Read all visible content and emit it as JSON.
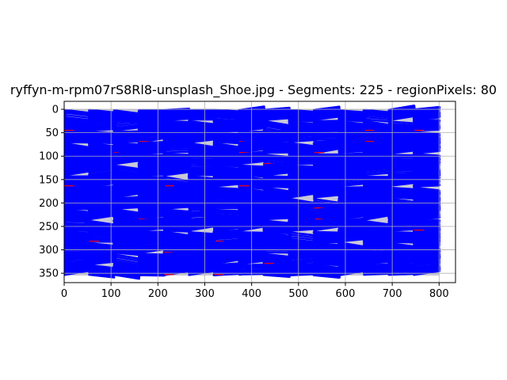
{
  "chart_data": {
    "type": "scatter",
    "title": "ryffyn-m-rpm07rS8Rl8-unsplash_Shoe.jpg - Segments: 225 - regionPixels: 80",
    "xlabel": "",
    "ylabel": "",
    "xlim": [
      0,
      835
    ],
    "ylim": [
      370,
      -17
    ],
    "y_inverted": true,
    "grid": true,
    "x_ticks": [
      0,
      100,
      200,
      300,
      400,
      500,
      600,
      700,
      800
    ],
    "y_ticks": [
      0,
      50,
      100,
      150,
      200,
      250,
      300,
      350
    ],
    "image_extent": {
      "x": [
        0,
        800
      ],
      "y": [
        0,
        355
      ]
    },
    "colors": {
      "background_image": "#c8c8d8",
      "segment_stroke": "#0000ff",
      "boundary_marks": "#ff0000",
      "grid": "#b0b0b0",
      "axes": "#000000"
    },
    "grid_segments": {
      "columns": 15,
      "rows": 15,
      "count": 225
    }
  }
}
